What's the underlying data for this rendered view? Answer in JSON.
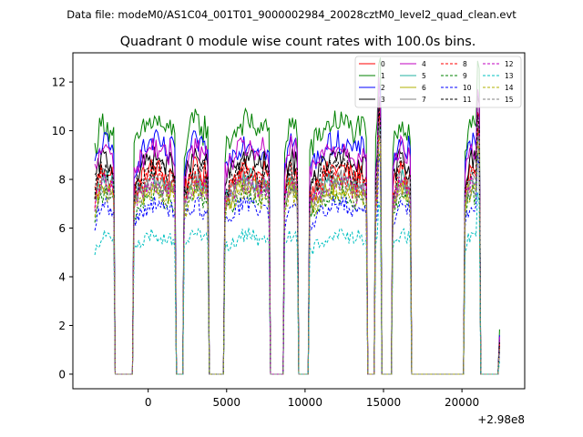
{
  "chart_data": {
    "type": "line",
    "suptitle": "Data file: modeM0/AS1C04_001T01_9000002984_20028cztM0_level2_quad_clean.evt",
    "title": "Quadrant 0 module wise count rates with 100.0s bins.",
    "xlabel": "",
    "ylabel": "",
    "x_offset_label": "+2.98e8",
    "xlim": [
      -4800,
      24000
    ],
    "ylim": [
      -0.6,
      13.2
    ],
    "x_ticks": [
      0,
      5000,
      10000,
      15000,
      20000
    ],
    "y_ticks": [
      0,
      2,
      4,
      6,
      8,
      10,
      12
    ],
    "x_tick_labels": [
      "0",
      "5000",
      "10000",
      "15000",
      "20000"
    ],
    "y_tick_labels": [
      "0",
      "2",
      "4",
      "6",
      "8",
      "10",
      "12"
    ],
    "segments": [
      [
        -3400,
        -2200
      ],
      [
        -900,
        1700
      ],
      [
        2300,
        3800
      ],
      [
        4900,
        7700
      ],
      [
        8700,
        9500
      ],
      [
        10300,
        13900
      ],
      [
        14500,
        14800
      ],
      [
        15600,
        16700
      ],
      [
        20200,
        21100
      ],
      [
        22400,
        22400
      ]
    ],
    "series": [
      {
        "name": "0",
        "color": "#ff0000",
        "dash": false,
        "level": 8.0
      },
      {
        "name": "1",
        "color": "#008000",
        "dash": false,
        "level": 9.8
      },
      {
        "name": "2",
        "color": "#0000ff",
        "dash": false,
        "level": 9.0
      },
      {
        "name": "3",
        "color": "#000000",
        "dash": false,
        "level": 8.4
      },
      {
        "name": "4",
        "color": "#c000c0",
        "dash": false,
        "level": 8.8
      },
      {
        "name": "5",
        "color": "#20b0a0",
        "dash": false,
        "level": 7.6
      },
      {
        "name": "6",
        "color": "#b0b000",
        "dash": false,
        "level": 7.3
      },
      {
        "name": "7",
        "color": "#808080",
        "dash": false,
        "level": 7.6
      },
      {
        "name": "8",
        "color": "#ff0000",
        "dash": true,
        "level": 7.7
      },
      {
        "name": "9",
        "color": "#008000",
        "dash": true,
        "level": 7.0
      },
      {
        "name": "10",
        "color": "#0000ff",
        "dash": true,
        "level": 6.6
      },
      {
        "name": "11",
        "color": "#000000",
        "dash": true,
        "level": 8.0
      },
      {
        "name": "12",
        "color": "#c000c0",
        "dash": true,
        "level": 7.4
      },
      {
        "name": "13",
        "color": "#00c0c0",
        "dash": true,
        "level": 5.4
      },
      {
        "name": "14",
        "color": "#b0b000",
        "dash": true,
        "level": 7.1
      },
      {
        "name": "15",
        "color": "#808080",
        "dash": true,
        "level": 7.3
      }
    ]
  }
}
